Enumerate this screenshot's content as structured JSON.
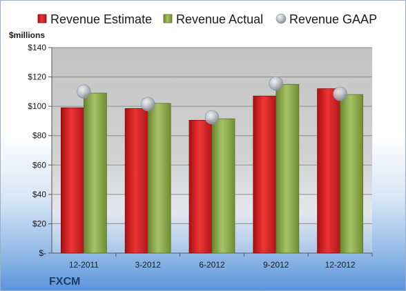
{
  "chart_data": {
    "type": "bar",
    "categories": [
      "12-2011",
      "3-2012",
      "6-2012",
      "9-2012",
      "12-2012"
    ],
    "series": [
      {
        "name": "Revenue Estimate",
        "type": "bar",
        "color": "#d92b2b",
        "values": [
          99,
          98.5,
          90.5,
          107,
          112
        ]
      },
      {
        "name": "Revenue Actual",
        "type": "bar",
        "color": "#8fb04a",
        "values": [
          109,
          102,
          91.5,
          115,
          108
        ]
      },
      {
        "name": "Revenue GAAP",
        "type": "marker",
        "color": "#b8bcc4",
        "values": [
          110,
          101.5,
          92.5,
          115.5,
          108.5
        ]
      }
    ],
    "ylabel": "$millions",
    "ylim": [
      0,
      140
    ],
    "yticks": [
      0,
      20,
      40,
      60,
      80,
      100,
      120,
      140
    ],
    "ytick_labels": [
      "$-",
      "$20",
      "$40",
      "$60",
      "$80",
      "$100",
      "$120",
      "$140"
    ],
    "grid": true,
    "legend_position": "top"
  },
  "footer": {
    "ticker": "FXCM"
  }
}
